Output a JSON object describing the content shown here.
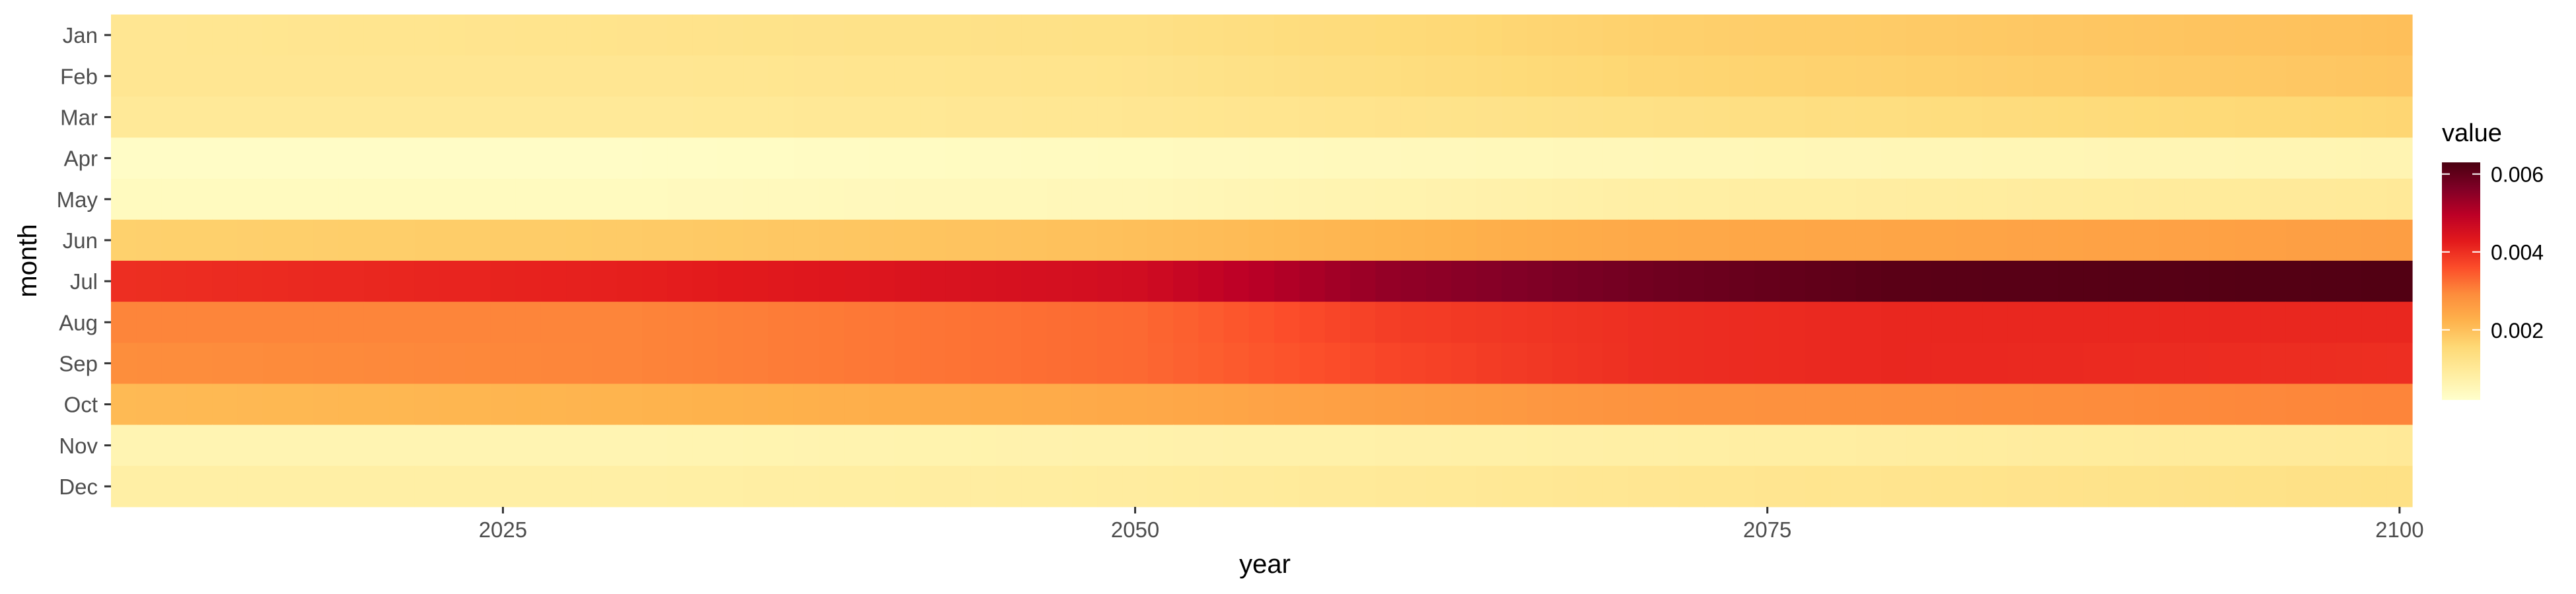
{
  "chart_data": {
    "type": "heatmap",
    "title": "",
    "xlabel": "year",
    "ylabel": "month",
    "x_range": [
      2010,
      2100
    ],
    "x_ticks": [
      2025,
      2050,
      2075,
      2100
    ],
    "x_tick_labels": [
      "2025",
      "2050",
      "2075",
      "2100"
    ],
    "months": [
      "Jan",
      "Feb",
      "Mar",
      "Apr",
      "May",
      "Jun",
      "Jul",
      "Aug",
      "Sep",
      "Oct",
      "Nov",
      "Dec"
    ],
    "legend": {
      "title": "value",
      "placement": "right",
      "range": [
        0.0002,
        0.0063
      ],
      "ticks": [
        0.002,
        0.004,
        0.006
      ],
      "tick_labels": [
        "0.002",
        "0.004",
        "0.006"
      ],
      "colors": [
        "#ffffcc",
        "#ffeda0",
        "#fed976",
        "#feb24c",
        "#fd8d3c",
        "#fc4e2a",
        "#e31a1c",
        "#bd0026",
        "#800026",
        "#4a0010"
      ]
    },
    "series": [
      {
        "name": "Jan",
        "years": [
          2010,
          2030,
          2050,
          2070,
          2100
        ],
        "values": [
          0.0011,
          0.0012,
          0.0013,
          0.0017,
          0.002
        ]
      },
      {
        "name": "Feb",
        "years": [
          2010,
          2030,
          2050,
          2070,
          2100
        ],
        "values": [
          0.0011,
          0.0011,
          0.0012,
          0.0016,
          0.0019
        ]
      },
      {
        "name": "Mar",
        "years": [
          2010,
          2030,
          2050,
          2070,
          2100
        ],
        "values": [
          0.001,
          0.001,
          0.0011,
          0.0013,
          0.0016
        ]
      },
      {
        "name": "Apr",
        "years": [
          2010,
          2030,
          2050,
          2070,
          2100
        ],
        "values": [
          0.0003,
          0.0003,
          0.0004,
          0.0005,
          0.0006
        ]
      },
      {
        "name": "May",
        "years": [
          2010,
          2030,
          2050,
          2070,
          2100
        ],
        "values": [
          0.0004,
          0.0004,
          0.0005,
          0.0008,
          0.001
        ]
      },
      {
        "name": "Jun",
        "years": [
          2010,
          2030,
          2050,
          2070,
          2100
        ],
        "values": [
          0.0017,
          0.0018,
          0.002,
          0.0024,
          0.0026
        ]
      },
      {
        "name": "Jul",
        "years": [
          2010,
          2030,
          2050,
          2060,
          2070,
          2080,
          2100
        ],
        "values": [
          0.004,
          0.0042,
          0.0046,
          0.0054,
          0.0058,
          0.0061,
          0.0062
        ]
      },
      {
        "name": "Aug",
        "years": [
          2010,
          2030,
          2050,
          2060,
          2070,
          2080,
          2100
        ],
        "values": [
          0.003,
          0.003,
          0.0033,
          0.0038,
          0.004,
          0.0041,
          0.0041
        ]
      },
      {
        "name": "Sep",
        "years": [
          2010,
          2030,
          2050,
          2060,
          2070,
          2080,
          2100
        ],
        "values": [
          0.0029,
          0.003,
          0.0033,
          0.0037,
          0.004,
          0.0041,
          0.004
        ]
      },
      {
        "name": "Oct",
        "years": [
          2010,
          2030,
          2050,
          2070,
          2100
        ],
        "values": [
          0.0021,
          0.0022,
          0.0024,
          0.0028,
          0.003
        ]
      },
      {
        "name": "Nov",
        "years": [
          2010,
          2030,
          2050,
          2070,
          2100
        ],
        "values": [
          0.0006,
          0.0006,
          0.0007,
          0.0008,
          0.001
        ]
      },
      {
        "name": "Dec",
        "years": [
          2010,
          2030,
          2050,
          2070,
          2100
        ],
        "values": [
          0.0008,
          0.0008,
          0.0009,
          0.0011,
          0.0013
        ]
      }
    ]
  }
}
